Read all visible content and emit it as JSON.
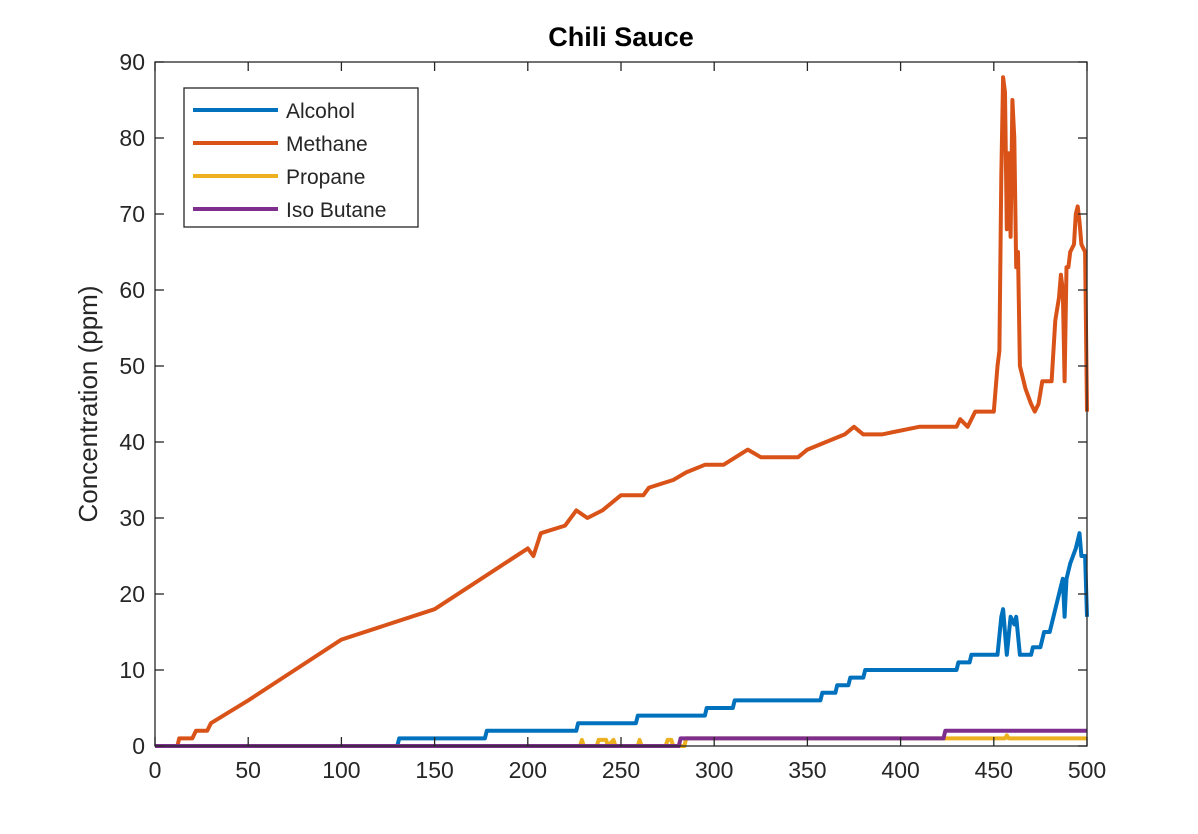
{
  "chart_data": {
    "type": "line",
    "title": "Chili Sauce",
    "xlabel": "",
    "ylabel": "Concentration (ppm)",
    "xlim": [
      0,
      500
    ],
    "ylim": [
      0,
      90
    ],
    "xticks": [
      0,
      50,
      100,
      150,
      200,
      250,
      300,
      350,
      400,
      450,
      500
    ],
    "yticks": [
      0,
      10,
      20,
      30,
      40,
      50,
      60,
      70,
      80,
      90
    ],
    "grid": false,
    "legend_position": "top-left",
    "series": [
      {
        "name": "Alcohol",
        "color": "#0072BD",
        "points": [
          [
            0,
            0
          ],
          [
            130,
            0
          ],
          [
            131,
            1
          ],
          [
            177,
            1
          ],
          [
            178,
            2
          ],
          [
            226,
            2
          ],
          [
            227,
            3
          ],
          [
            258,
            3
          ],
          [
            259,
            4
          ],
          [
            295,
            4
          ],
          [
            296,
            5
          ],
          [
            310,
            5
          ],
          [
            311,
            6
          ],
          [
            357,
            6
          ],
          [
            358,
            7
          ],
          [
            365,
            7
          ],
          [
            366,
            8
          ],
          [
            372,
            8
          ],
          [
            373,
            9
          ],
          [
            380,
            9
          ],
          [
            381,
            10
          ],
          [
            430,
            10
          ],
          [
            431,
            11
          ],
          [
            437,
            11
          ],
          [
            438,
            12
          ],
          [
            452,
            12
          ],
          [
            454,
            17
          ],
          [
            455,
            18
          ],
          [
            457,
            12
          ],
          [
            459,
            17
          ],
          [
            461,
            16
          ],
          [
            462,
            17
          ],
          [
            464,
            12
          ],
          [
            470,
            12
          ],
          [
            471,
            13
          ],
          [
            475,
            13
          ],
          [
            477,
            15
          ],
          [
            480,
            15
          ],
          [
            483,
            18
          ],
          [
            486,
            21
          ],
          [
            487,
            22
          ],
          [
            488,
            17
          ],
          [
            489,
            22
          ],
          [
            491,
            24
          ],
          [
            494,
            26
          ],
          [
            496,
            28
          ],
          [
            497,
            25
          ],
          [
            499,
            25
          ],
          [
            500,
            17
          ]
        ]
      },
      {
        "name": "Methane",
        "color": "#D95319",
        "points": [
          [
            0,
            0
          ],
          [
            12,
            0
          ],
          [
            13,
            1
          ],
          [
            20,
            1
          ],
          [
            22,
            2
          ],
          [
            28,
            2
          ],
          [
            30,
            3
          ],
          [
            50,
            6
          ],
          [
            75,
            10
          ],
          [
            100,
            14
          ],
          [
            125,
            16
          ],
          [
            150,
            18
          ],
          [
            175,
            22
          ],
          [
            200,
            26
          ],
          [
            203,
            25
          ],
          [
            207,
            28
          ],
          [
            220,
            29
          ],
          [
            226,
            31
          ],
          [
            232,
            30
          ],
          [
            240,
            31
          ],
          [
            250,
            33
          ],
          [
            262,
            33
          ],
          [
            265,
            34
          ],
          [
            278,
            35
          ],
          [
            285,
            36
          ],
          [
            295,
            37
          ],
          [
            305,
            37
          ],
          [
            318,
            39
          ],
          [
            325,
            38
          ],
          [
            345,
            38
          ],
          [
            350,
            39
          ],
          [
            360,
            40
          ],
          [
            370,
            41
          ],
          [
            375,
            42
          ],
          [
            380,
            41
          ],
          [
            385,
            41
          ],
          [
            390,
            41
          ],
          [
            410,
            42
          ],
          [
            430,
            42
          ],
          [
            432,
            43
          ],
          [
            436,
            42
          ],
          [
            440,
            44
          ],
          [
            450,
            44
          ],
          [
            452,
            50
          ],
          [
            453,
            52
          ],
          [
            454,
            75
          ],
          [
            455,
            88
          ],
          [
            456,
            86
          ],
          [
            457,
            68
          ],
          [
            458,
            78
          ],
          [
            459,
            67
          ],
          [
            460,
            85
          ],
          [
            461,
            80
          ],
          [
            462,
            63
          ],
          [
            463,
            65
          ],
          [
            464,
            50
          ],
          [
            467,
            47
          ],
          [
            470,
            45
          ],
          [
            472,
            44
          ],
          [
            474,
            45
          ],
          [
            476,
            48
          ],
          [
            481,
            48
          ],
          [
            483,
            56
          ],
          [
            485,
            59
          ],
          [
            486,
            62
          ],
          [
            487,
            60
          ],
          [
            488,
            48
          ],
          [
            489,
            63
          ],
          [
            490,
            63
          ],
          [
            491,
            65
          ],
          [
            493,
            66
          ],
          [
            494,
            70
          ],
          [
            495,
            71
          ],
          [
            496,
            69
          ],
          [
            497,
            66
          ],
          [
            499,
            65
          ],
          [
            500,
            44
          ]
        ]
      },
      {
        "name": "Propane",
        "color": "#EDB120",
        "points": [
          [
            0,
            0
          ],
          [
            228,
            0
          ],
          [
            229,
            0.8
          ],
          [
            230,
            0
          ],
          [
            237,
            0
          ],
          [
            238,
            0.8
          ],
          [
            242,
            0.8
          ],
          [
            243,
            0
          ],
          [
            246,
            0.8
          ],
          [
            247,
            0
          ],
          [
            259,
            0
          ],
          [
            260,
            0.8
          ],
          [
            261,
            0
          ],
          [
            274,
            0
          ],
          [
            275,
            0.8
          ],
          [
            277,
            0.8
          ],
          [
            278,
            0
          ],
          [
            284,
            0
          ],
          [
            285,
            1
          ],
          [
            456,
            1
          ],
          [
            457,
            1.4
          ],
          [
            458,
            1
          ],
          [
            500,
            1
          ]
        ]
      },
      {
        "name": "Iso Butane",
        "color": "#7E2F8E",
        "points": [
          [
            0,
            0
          ],
          [
            281,
            0
          ],
          [
            282,
            1
          ],
          [
            423,
            1
          ],
          [
            424,
            2
          ],
          [
            500,
            2
          ]
        ]
      }
    ]
  }
}
